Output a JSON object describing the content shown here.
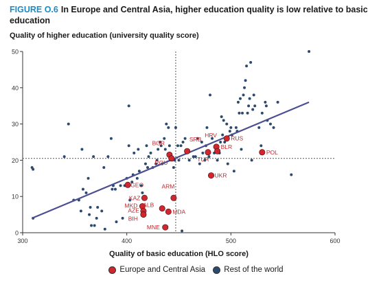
{
  "figure": {
    "label": "FIGURE O.6",
    "title": "In Europe and Central Asia, higher education quality is low relative to basic education",
    "panel_title": "Quality of higher education (university quality score)"
  },
  "colors": {
    "eca": "#d0262d",
    "row": "#2c4a6e",
    "trend": "#4b4e91",
    "ref": "#555555",
    "label": "#c0272d"
  },
  "legend": {
    "eca": "Europe and Central Asia",
    "row": "Rest of the world"
  },
  "chart_data": {
    "type": "scatter",
    "xlabel": "Quality of basic education (HLO score)",
    "ylabel": "Quality of higher education (university quality score)",
    "xlim": [
      300,
      600
    ],
    "ylim": [
      0,
      50
    ],
    "xticks": [
      300,
      400,
      500,
      600
    ],
    "yticks": [
      0,
      10,
      20,
      30,
      40,
      50
    ],
    "reference_lines": {
      "x": 447,
      "y": 20.5
    },
    "trendline": [
      [
        309,
        4
      ],
      [
        575,
        36
      ]
    ],
    "series": [
      {
        "name": "Europe and Central Asia",
        "points": [
          {
            "label": "BGR",
            "x": 441,
            "y": 21.5
          },
          {
            "label": "SRB",
            "x": 458,
            "y": 22.5
          },
          {
            "label": "ROU",
            "x": 443,
            "y": 20.5
          },
          {
            "label": "HRV",
            "x": 486,
            "y": 23.7
          },
          {
            "label": "RUS",
            "x": 496,
            "y": 26.0
          },
          {
            "label": "BLR",
            "x": 487,
            "y": 22.5
          },
          {
            "label": "TUR",
            "x": 478,
            "y": 22.2
          },
          {
            "label": "UKR",
            "x": 481,
            "y": 15.8
          },
          {
            "label": "POL",
            "x": 530,
            "y": 22.2
          },
          {
            "label": "GEO",
            "x": 401,
            "y": 13.2
          },
          {
            "label": "ARM",
            "x": 445,
            "y": 9.6
          },
          {
            "label": "KAZ",
            "x": 417,
            "y": 9.6
          },
          {
            "label": "ALB",
            "x": 434,
            "y": 6.7
          },
          {
            "label": "MKD",
            "x": 415,
            "y": 7.3
          },
          {
            "label": "AZE",
            "x": 416,
            "y": 6.0
          },
          {
            "label": "MDA",
            "x": 440,
            "y": 5.8
          },
          {
            "label": "BIH",
            "x": 416,
            "y": 5.0
          },
          {
            "label": "MNE",
            "x": 437,
            "y": 1.5
          }
        ]
      },
      {
        "name": "Rest of the world",
        "points": [
          [
            309,
            18
          ],
          [
            310,
            17.5
          ],
          [
            310,
            4
          ],
          [
            340,
            21
          ],
          [
            344,
            30
          ],
          [
            349,
            9
          ],
          [
            354,
            9
          ],
          [
            356,
            6
          ],
          [
            357,
            23
          ],
          [
            358,
            12
          ],
          [
            361,
            11
          ],
          [
            363,
            15
          ],
          [
            364,
            5
          ],
          [
            365,
            7
          ],
          [
            366,
            2
          ],
          [
            368,
            21
          ],
          [
            369,
            2
          ],
          [
            371,
            4
          ],
          [
            372,
            7
          ],
          [
            376,
            6
          ],
          [
            378,
            18
          ],
          [
            379,
            1
          ],
          [
            382,
            21
          ],
          [
            385,
            26
          ],
          [
            386,
            12
          ],
          [
            387,
            13
          ],
          [
            389,
            12
          ],
          [
            390,
            3
          ],
          [
            394,
            13
          ],
          [
            396,
            4
          ],
          [
            398,
            13
          ],
          [
            400,
            15
          ],
          [
            402,
            24
          ],
          [
            402,
            35
          ],
          [
            403,
            9
          ],
          [
            405,
            14
          ],
          [
            406,
            16
          ],
          [
            407,
            22
          ],
          [
            410,
            15
          ],
          [
            411,
            23
          ],
          [
            412,
            17
          ],
          [
            414,
            13
          ],
          [
            415,
            11
          ],
          [
            418,
            19
          ],
          [
            419,
            24
          ],
          [
            420,
            18
          ],
          [
            421,
            21
          ],
          [
            423,
            22
          ],
          [
            425,
            18
          ],
          [
            428,
            19
          ],
          [
            429,
            20
          ],
          [
            430,
            23
          ],
          [
            432,
            25
          ],
          [
            433,
            24
          ],
          [
            434,
            19
          ],
          [
            436,
            26
          ],
          [
            437,
            23
          ],
          [
            438,
            30
          ],
          [
            440,
            29
          ],
          [
            441,
            24
          ],
          [
            443,
            21
          ],
          [
            445,
            18
          ],
          [
            446,
            20
          ],
          [
            447,
            29
          ],
          [
            449,
            24
          ],
          [
            450,
            20
          ],
          [
            452,
            24
          ],
          [
            453,
            0.5
          ],
          [
            454,
            25
          ],
          [
            456,
            26
          ],
          [
            460,
            20
          ],
          [
            464,
            21
          ],
          [
            466,
            21
          ],
          [
            468,
            26
          ],
          [
            470,
            19
          ],
          [
            472,
            25
          ],
          [
            473,
            22
          ],
          [
            475,
            20
          ],
          [
            476,
            24
          ],
          [
            477,
            29
          ],
          [
            479,
            21
          ],
          [
            480,
            38
          ],
          [
            482,
            26
          ],
          [
            484,
            22
          ],
          [
            486,
            24
          ],
          [
            487,
            20
          ],
          [
            489,
            22
          ],
          [
            490,
            25
          ],
          [
            491,
            32
          ],
          [
            492,
            27
          ],
          [
            493,
            31
          ],
          [
            494,
            25
          ],
          [
            496,
            30
          ],
          [
            497,
            19
          ],
          [
            499,
            28
          ],
          [
            500,
            29
          ],
          [
            501,
            27
          ],
          [
            503,
            17
          ],
          [
            505,
            29
          ],
          [
            506,
            28
          ],
          [
            507,
            36
          ],
          [
            508,
            33
          ],
          [
            509,
            37
          ],
          [
            510,
            23
          ],
          [
            511,
            33
          ],
          [
            512,
            38
          ],
          [
            513,
            40
          ],
          [
            514,
            42
          ],
          [
            515,
            46
          ],
          [
            516,
            33
          ],
          [
            517,
            35
          ],
          [
            518,
            37
          ],
          [
            519,
            47
          ],
          [
            520,
            20
          ],
          [
            521,
            34
          ],
          [
            522,
            38
          ],
          [
            523,
            35
          ],
          [
            527,
            29
          ],
          [
            529,
            24
          ],
          [
            530,
            33
          ],
          [
            533,
            36
          ],
          [
            534,
            35
          ],
          [
            535,
            31
          ],
          [
            538,
            30
          ],
          [
            541,
            29
          ],
          [
            545,
            36
          ],
          [
            558,
            16
          ],
          [
            575,
            50
          ]
        ]
      }
    ]
  }
}
